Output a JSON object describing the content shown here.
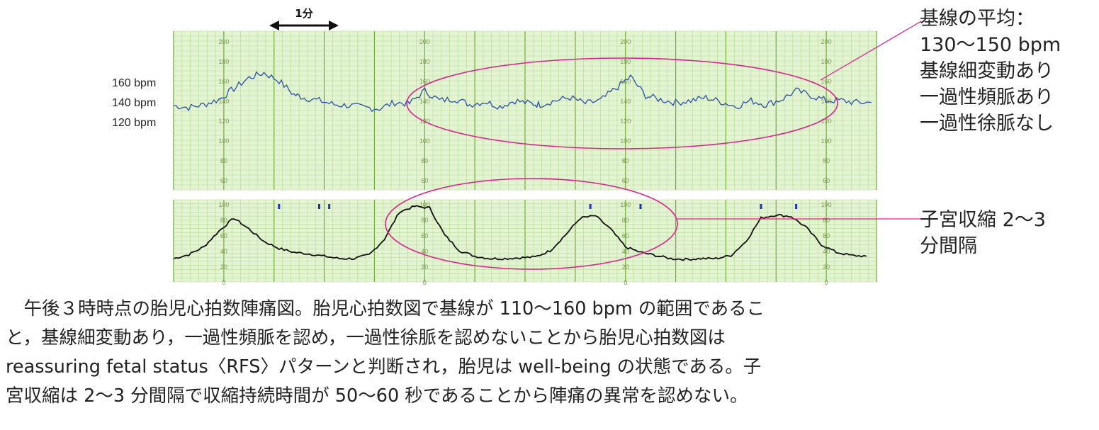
{
  "chart_data": [
    {
      "type": "line",
      "name_hint": "fetal-heart-rate",
      "ylim": [
        50,
        210
      ],
      "yticks": [
        60,
        80,
        100,
        120,
        140,
        160,
        180,
        200
      ],
      "ylabels_left": [
        "160 bpm",
        "140 bpm",
        "120 bpm"
      ],
      "x_minutes": [
        0,
        0.3,
        0.6,
        0.9,
        1.2,
        1.5,
        1.8,
        2.1,
        2.4,
        2.6,
        2.9,
        3.2,
        3.5,
        3.8,
        4.1,
        4.4,
        4.7,
        5.0,
        5.3,
        5.6,
        5.9,
        6.2,
        6.5,
        6.8,
        7.1,
        7.3,
        7.6,
        7.9,
        8.2,
        8.5,
        8.8,
        9.1,
        9.4,
        9.7,
        10.0,
        10.3,
        10.6,
        10.9,
        11.2,
        11.5,
        11.8,
        12.1,
        12.4,
        12.7,
        13.0,
        13.3,
        13.6,
        13.9
      ],
      "y_bpm": [
        135,
        133,
        136,
        141,
        152,
        163,
        168,
        160,
        146,
        143,
        140,
        136,
        135,
        133,
        132,
        138,
        137,
        150,
        140,
        142,
        136,
        139,
        134,
        140,
        137,
        136,
        140,
        143,
        137,
        140,
        152,
        164,
        145,
        141,
        138,
        140,
        143,
        139,
        134,
        140,
        136,
        141,
        150,
        145,
        140,
        140,
        138,
        138
      ],
      "annotation": {
        "label": "1分",
        "x_range_minutes": [
          2,
          3
        ]
      }
    },
    {
      "type": "line",
      "name_hint": "uterine-contraction",
      "ylim": [
        0,
        100
      ],
      "yticks": [
        0,
        20,
        40,
        60,
        80,
        100
      ],
      "x_minutes": [
        0,
        0.3,
        0.6,
        0.9,
        1.2,
        1.5,
        1.8,
        2.1,
        2.4,
        2.7,
        3.0,
        3.3,
        3.6,
        3.9,
        4.2,
        4.5,
        4.8,
        5.1,
        5.4,
        5.7,
        6.0,
        6.3,
        6.6,
        6.9,
        7.2,
        7.5,
        7.8,
        8.1,
        8.4,
        8.7,
        9.0,
        9.3,
        9.6,
        9.9,
        10.2,
        10.5,
        10.8,
        11.1,
        11.4,
        11.7,
        12.0,
        12.3,
        12.6,
        12.9,
        13.2,
        13.5,
        13.8
      ],
      "y": [
        30,
        35,
        45,
        65,
        82,
        68,
        52,
        43,
        38,
        36,
        33,
        30,
        30,
        35,
        55,
        90,
        97,
        95,
        60,
        40,
        33,
        30,
        30,
        31,
        32,
        40,
        60,
        82,
        85,
        68,
        45,
        38,
        34,
        30,
        29,
        30,
        30,
        34,
        52,
        82,
        86,
        84,
        70,
        48,
        38,
        34,
        33
      ],
      "markers_minutes": [
        2.1,
        2.9,
        3.1,
        8.3,
        9.3,
        11.7,
        12.4
      ]
    }
  ],
  "fhr_notes": [
    "基線の平均：",
    "130〜150 bpm",
    "基線細変動あり",
    "一過性頻脈あり",
    "一過性徐脈なし"
  ],
  "uc_notes": [
    "子宮収縮 2〜3",
    "分間隔"
  ],
  "caption_lines": [
    "　午後３時時点の胎児心拍数陣痛図。胎児心拍数図で基線が 110〜160 bpm の範囲であるこ",
    "と，基線細変動あり，一過性頻脈を認め，一過性徐脈を認めないことから胎児心拍数図は",
    "reassuring fetal status〈RFS〉パターンと判断され，胎児は well-being の状態である。子",
    "宮収縮は 2〜3 分間隔で収縮持続時間が 50〜60 秒であることから陣痛の異常を認めない。"
  ],
  "colors": {
    "grid_fill": "#e3f4d2",
    "grid_minor": "#b7d994",
    "grid_major": "#6fa832",
    "fhr_line": "#2b4fa8",
    "uc_line": "#111111",
    "ellipse": "#e0208c",
    "marker": "#2233aa",
    "tick_text": "#7a9a50"
  }
}
